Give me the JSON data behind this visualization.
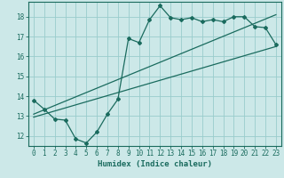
{
  "xlabel": "Humidex (Indice chaleur)",
  "bg_color": "#cce8e8",
  "grid_color": "#99cccc",
  "line_color": "#1a6b5e",
  "xlim": [
    -0.5,
    23.5
  ],
  "ylim": [
    11.5,
    18.75
  ],
  "yticks": [
    12,
    13,
    14,
    15,
    16,
    17,
    18
  ],
  "xticks": [
    0,
    1,
    2,
    3,
    4,
    5,
    6,
    7,
    8,
    9,
    10,
    11,
    12,
    13,
    14,
    15,
    16,
    17,
    18,
    19,
    20,
    21,
    22,
    23
  ],
  "main_x": [
    0,
    1,
    2,
    3,
    4,
    5,
    6,
    7,
    8,
    9,
    10,
    11,
    12,
    13,
    14,
    15,
    16,
    17,
    18,
    19,
    20,
    21,
    22,
    23
  ],
  "main_y": [
    13.8,
    13.35,
    12.85,
    12.8,
    11.85,
    11.65,
    12.2,
    13.1,
    13.85,
    16.9,
    16.7,
    17.85,
    18.55,
    17.95,
    17.85,
    17.95,
    17.75,
    17.85,
    17.75,
    18.0,
    18.0,
    17.5,
    17.45,
    16.6
  ],
  "trend1_x": [
    0,
    23
  ],
  "trend1_y": [
    12.95,
    16.5
  ],
  "trend2_x": [
    0,
    23
  ],
  "trend2_y": [
    13.1,
    18.1
  ]
}
